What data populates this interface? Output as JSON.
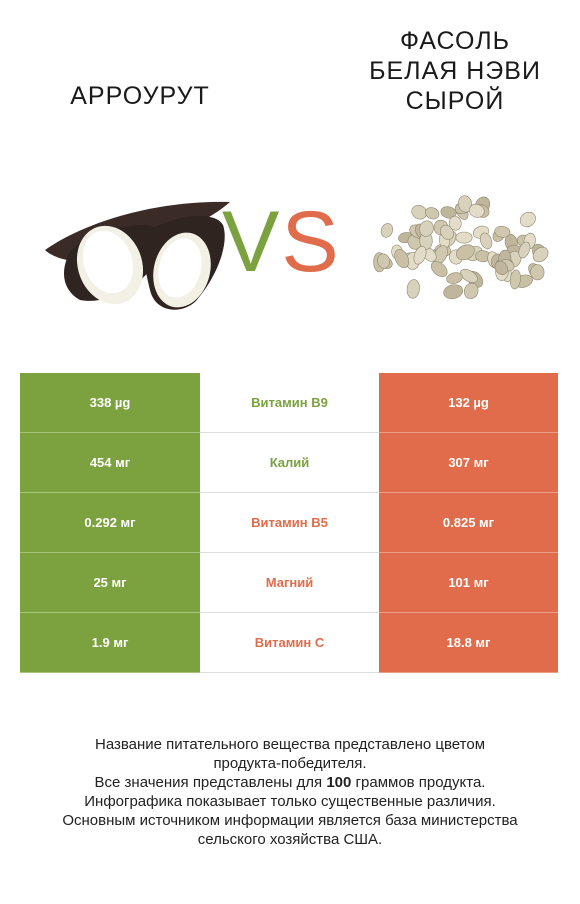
{
  "left_product": {
    "name": "АРРОУРУТ",
    "color": "#7ba23f"
  },
  "right_product": {
    "name_lines": [
      "ФАСОЛЬ",
      "БЕЛАЯ НЭВИ",
      "СЫРОЙ"
    ],
    "color": "#e06c4b"
  },
  "vs": {
    "v": "V",
    "s": "S"
  },
  "rows": [
    {
      "left": "338 µg",
      "nutrient": "Витамин B9",
      "right": "132 µg",
      "winner": "left"
    },
    {
      "left": "454 мг",
      "nutrient": "Калий",
      "right": "307 мг",
      "winner": "left"
    },
    {
      "left": "0.292 мг",
      "nutrient": "Витамин B5",
      "right": "0.825 мг",
      "winner": "right"
    },
    {
      "left": "25 мг",
      "nutrient": "Магний",
      "right": "101 мг",
      "winner": "right"
    },
    {
      "left": "1.9 мг",
      "nutrient": "Витамин C",
      "right": "18.8 мг",
      "winner": "right"
    }
  ],
  "footer": {
    "line1": "Название питательного вещества представлено цветом",
    "line2": "продукта-победителя.",
    "line3_pre": "Все значения представлены для ",
    "line3_bold": "100",
    "line3_post": " граммов продукта.",
    "line4": "Инфографика показывает только существенные различия.",
    "line5": "Основным источником информации является база министерства",
    "line6": "сельского хозяйства США."
  }
}
